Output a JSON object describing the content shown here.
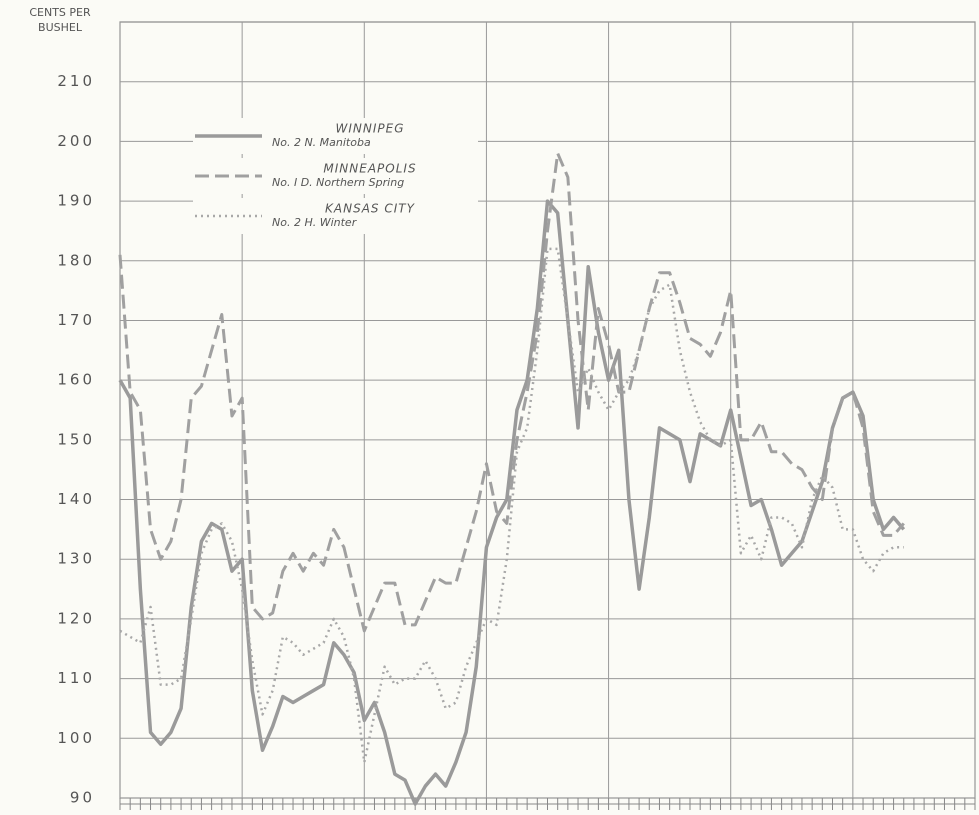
{
  "chart_data": {
    "type": "line",
    "y_label": [
      "CENTS PER",
      "BUSHEL"
    ],
    "x": [
      0,
      1,
      2,
      3,
      4,
      5,
      6,
      7,
      8,
      9,
      10,
      11,
      12,
      13,
      14,
      15,
      16,
      17,
      18,
      19,
      20,
      21,
      22,
      23,
      24,
      25,
      26,
      27,
      28,
      29,
      30,
      31,
      32,
      33,
      34,
      35,
      36,
      37,
      38,
      39,
      40,
      41,
      42,
      43,
      44,
      45,
      46,
      47,
      48,
      49,
      50,
      51,
      52,
      53,
      54,
      55,
      56,
      57,
      58,
      59,
      60,
      61,
      62,
      63,
      64,
      65,
      66,
      67,
      68,
      69,
      70,
      71,
      72,
      73,
      74,
      75,
      76,
      77
    ],
    "xlim": [
      0,
      84
    ],
    "xticks": [
      {
        "value": 0
      },
      {
        "value": 12
      },
      {
        "value": 24
      },
      {
        "value": 36
      },
      {
        "value": 48
      },
      {
        "value": 60
      },
      {
        "value": 72
      },
      {
        "value": 84
      }
    ],
    "ylim": [
      90,
      220
    ],
    "yticks": [
      90,
      100,
      110,
      120,
      130,
      140,
      150,
      160,
      170,
      180,
      190,
      200,
      210
    ],
    "grid": true,
    "legend": "upper left",
    "series": [
      {
        "name": "WINNIPEG",
        "grade": "No. 2 N. Manitoba",
        "color": "#9a9a9a",
        "style": "solid",
        "values": [
          160,
          157,
          125,
          101,
          99,
          101,
          105,
          122,
          133,
          136,
          135,
          128,
          130,
          108,
          98,
          102,
          107,
          106,
          107,
          108,
          109,
          116,
          114,
          111,
          103,
          106,
          101,
          94,
          93,
          89,
          92,
          94,
          92,
          96,
          101,
          112,
          132,
          137,
          140,
          155,
          160,
          172,
          190,
          188,
          170,
          152,
          179,
          168,
          160,
          165,
          140,
          125,
          137,
          152,
          151,
          150,
          143,
          151,
          150,
          149,
          155,
          147,
          139,
          140,
          135,
          129,
          131,
          133,
          138,
          143,
          152,
          157,
          158,
          154,
          140,
          135,
          137,
          135
        ]
      },
      {
        "name": "MINNEAPOLIS",
        "grade": "No. I D. Northern Spring",
        "color": "#a0a0a0",
        "style": "dashed",
        "values": [
          181,
          158,
          155,
          135,
          130,
          133,
          140,
          157,
          159,
          165,
          171,
          154,
          157,
          122,
          120,
          121,
          128,
          131,
          128,
          131,
          129,
          135,
          132,
          125,
          118,
          122,
          126,
          126,
          119,
          119,
          123,
          127,
          126,
          126,
          132,
          138,
          146,
          138,
          136,
          150,
          158,
          168,
          185,
          198,
          194,
          170,
          155,
          172,
          166,
          158,
          158,
          165,
          172,
          178,
          178,
          173,
          167,
          166,
          164,
          168,
          175,
          150,
          150,
          153,
          148,
          148,
          146,
          145,
          142,
          140,
          152,
          157,
          158,
          152,
          138,
          134,
          134,
          136
        ]
      },
      {
        "name": "KANSAS CITY",
        "grade": "No. 2 H. Winter",
        "color": "#a8a8a8",
        "style": "dotted",
        "values": [
          118,
          117,
          116,
          122,
          109,
          109,
          110,
          120,
          131,
          135,
          136,
          133,
          125,
          113,
          104,
          108,
          117,
          116,
          114,
          115,
          116,
          120,
          117,
          110,
          96,
          104,
          112,
          109,
          110,
          110,
          113,
          110,
          105,
          106,
          112,
          116,
          120,
          119,
          130,
          148,
          152,
          165,
          182,
          182,
          170,
          158,
          162,
          158,
          155,
          158,
          160,
          165,
          172,
          175,
          176,
          165,
          158,
          153,
          150,
          149,
          150,
          131,
          134,
          130,
          137,
          137,
          136,
          132,
          140,
          144,
          142,
          135,
          135,
          130,
          128,
          131,
          132,
          132
        ]
      }
    ]
  }
}
